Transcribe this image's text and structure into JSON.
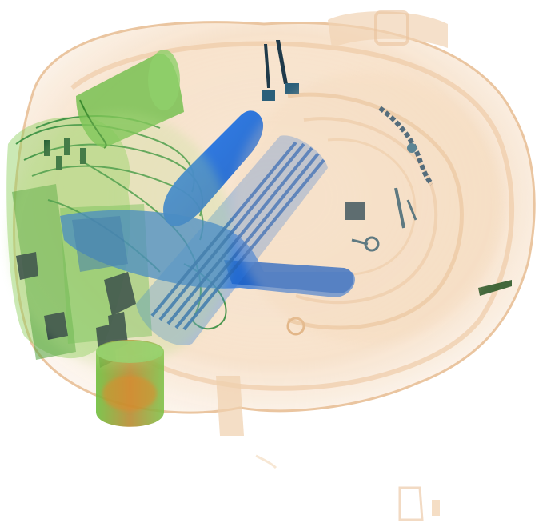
{
  "image": {
    "kind": "xray-baggage-scan",
    "palette": {
      "background": "#ffffff",
      "organic": "#f2c9a0",
      "organic_dark": "#e0a877",
      "inorganic_green": "#4fa33a",
      "inorganic_light_green": "#8fcf5a",
      "metal_blue": "#1f6fd6",
      "metal_dark": "#1b2a3a",
      "orange_core": "#e08a2a"
    }
  }
}
